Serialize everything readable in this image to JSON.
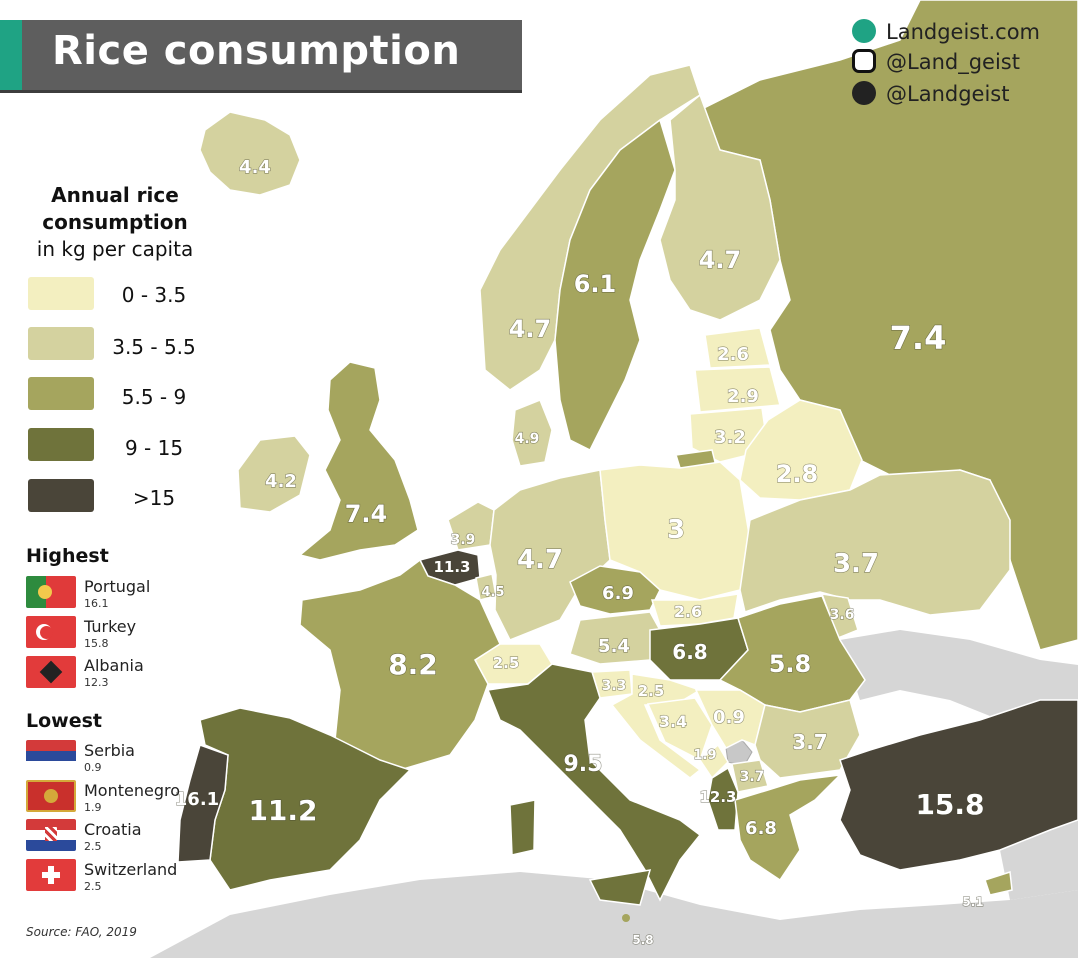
{
  "title": "Rice consumption",
  "social": {
    "website": "Landgeist.com",
    "instagram": "@Land_geist",
    "twitter": "@Landgeist"
  },
  "legend": {
    "title": "Annual rice consumption",
    "subtitle": "in kg per capita",
    "bins": [
      {
        "label": "0  - 3.5",
        "color": "#f3efc0"
      },
      {
        "label": "3.5 - 5.5",
        "color": "#d4d29f"
      },
      {
        "label": "5.5 -  9",
        "color": "#a5a55e"
      },
      {
        "label": "9  - 15",
        "color": "#6f733b"
      },
      {
        "label": ">15",
        "color": "#4a4539"
      }
    ]
  },
  "highest": {
    "heading": "Highest",
    "items": [
      {
        "name": "Portugal",
        "value": "16.1"
      },
      {
        "name": "Turkey",
        "value": "15.8"
      },
      {
        "name": "Albania",
        "value": "12.3"
      }
    ]
  },
  "lowest": {
    "heading": "Lowest",
    "items": [
      {
        "name": "Serbia",
        "value": "0.9"
      },
      {
        "name": "Montenegro",
        "value": "1.9"
      },
      {
        "name": "Croatia",
        "value": "2.5"
      },
      {
        "name": "Switzerland",
        "value": "2.5"
      }
    ]
  },
  "source": "Source: FAO, 2019",
  "colors": {
    "sea": "#ffffff",
    "no_data": "#d6d6d6",
    "title_bg": "#5e5e5e",
    "accent": "#1fa384"
  },
  "map_values": [
    {
      "country": "Iceland",
      "value": "4.4"
    },
    {
      "country": "Norway",
      "value": "4.7"
    },
    {
      "country": "Sweden",
      "value": "6.1"
    },
    {
      "country": "Finland",
      "value": "4.7"
    },
    {
      "country": "Russia",
      "value": "7.4"
    },
    {
      "country": "Estonia",
      "value": "2.6"
    },
    {
      "country": "Latvia",
      "value": "2.9"
    },
    {
      "country": "Lithuania",
      "value": "3.2"
    },
    {
      "country": "Belarus",
      "value": "2.8"
    },
    {
      "country": "Denmark",
      "value": "4.9"
    },
    {
      "country": "Ireland",
      "value": "4.2"
    },
    {
      "country": "United Kingdom",
      "value": "7.4"
    },
    {
      "country": "Netherlands",
      "value": "3.9"
    },
    {
      "country": "Belgium",
      "value": "11.3"
    },
    {
      "country": "Luxembourg",
      "value": "4.5"
    },
    {
      "country": "Germany",
      "value": "4.7"
    },
    {
      "country": "Poland",
      "value": "3"
    },
    {
      "country": "Ukraine",
      "value": "3.7"
    },
    {
      "country": "Moldova",
      "value": "3.6"
    },
    {
      "country": "Czechia",
      "value": "6.9"
    },
    {
      "country": "Slovakia",
      "value": "2.6"
    },
    {
      "country": "Austria",
      "value": "5.4"
    },
    {
      "country": "Hungary",
      "value": "6.8"
    },
    {
      "country": "Romania",
      "value": "5.8"
    },
    {
      "country": "Switzerland",
      "value": "2.5"
    },
    {
      "country": "France",
      "value": "8.2"
    },
    {
      "country": "Slovenia",
      "value": "3.3"
    },
    {
      "country": "Croatia",
      "value": "2.5"
    },
    {
      "country": "Bosnia and Herzegovina",
      "value": "3.4"
    },
    {
      "country": "Serbia",
      "value": "0.9"
    },
    {
      "country": "Bulgaria",
      "value": "3.7"
    },
    {
      "country": "Montenegro",
      "value": "1.9"
    },
    {
      "country": "North Macedonia",
      "value": "3.7"
    },
    {
      "country": "Albania",
      "value": "12.3"
    },
    {
      "country": "Greece",
      "value": "6.8"
    },
    {
      "country": "Italy",
      "value": "9.5"
    },
    {
      "country": "Spain",
      "value": "11.2"
    },
    {
      "country": "Portugal",
      "value": "16.1"
    },
    {
      "country": "Turkey",
      "value": "15.8"
    },
    {
      "country": "Cyprus",
      "value": "5.1"
    },
    {
      "country": "Malta",
      "value": "5.8"
    }
  ]
}
